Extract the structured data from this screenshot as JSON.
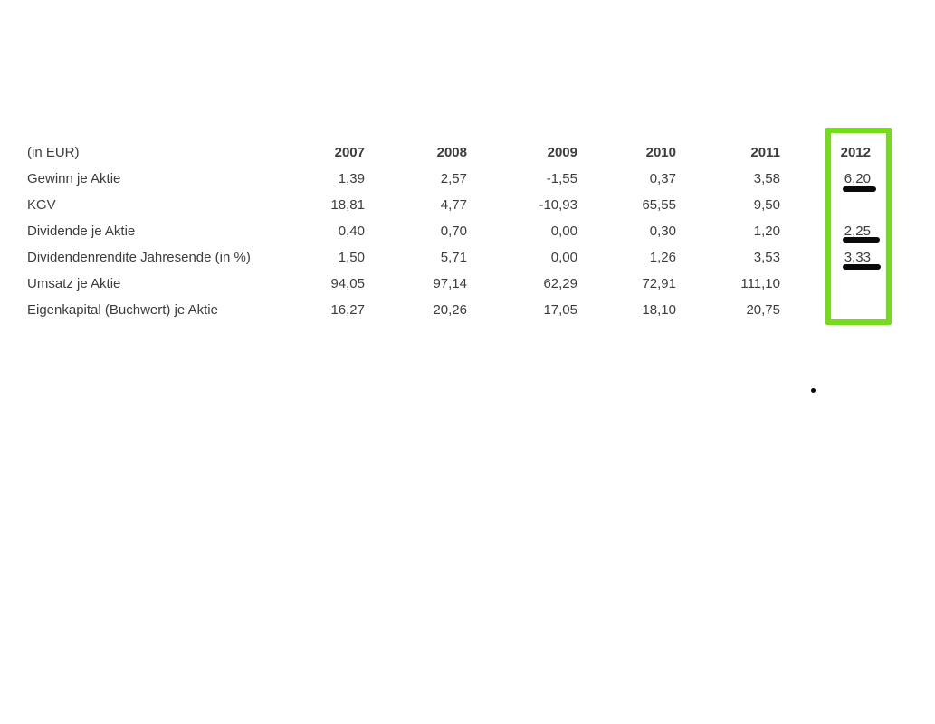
{
  "page": {
    "background": "#FFFFFF"
  },
  "annotation_colors": {
    "highlight_green": "#74DC1B",
    "marker_black": "#0A0A0A",
    "text_color": "#3C3C3B"
  },
  "table": {
    "unit_label": "(in EUR)",
    "year_columns": [
      "2007",
      "2008",
      "2009",
      "2010",
      "2011",
      "2012"
    ],
    "highlighted_column": "2012",
    "rows": [
      {
        "label": "Gewinn je Aktie",
        "values": [
          "1,39",
          "2,57",
          "-1,55",
          "0,37",
          "3,58",
          "6,20"
        ],
        "marked_2012": true
      },
      {
        "label": "KGV",
        "values": [
          "18,81",
          "4,77",
          "-10,93",
          "65,55",
          "9,50",
          ""
        ],
        "marked_2012": false
      },
      {
        "label": "Dividende je Aktie",
        "values": [
          "0,40",
          "0,70",
          "0,00",
          "0,30",
          "1,20",
          "2,25"
        ],
        "marked_2012": true
      },
      {
        "label": "Dividendenrendite Jahresende (in %)",
        "values": [
          "1,50",
          "5,71",
          "0,00",
          "1,26",
          "3,53",
          "3,33"
        ],
        "marked_2012": true
      },
      {
        "label": "Umsatz je Aktie",
        "values": [
          "94,05",
          "97,14",
          "62,29",
          "72,91",
          "111,10",
          ""
        ],
        "marked_2012": false
      },
      {
        "label": "Eigenkapital (Buchwert) je Aktie",
        "values": [
          "16,27",
          "20,26",
          "17,05",
          "18,10",
          "20,75",
          ""
        ],
        "marked_2012": false
      }
    ],
    "underlined_values_2012": [
      "6,20",
      "2,25",
      "3,33"
    ]
  }
}
